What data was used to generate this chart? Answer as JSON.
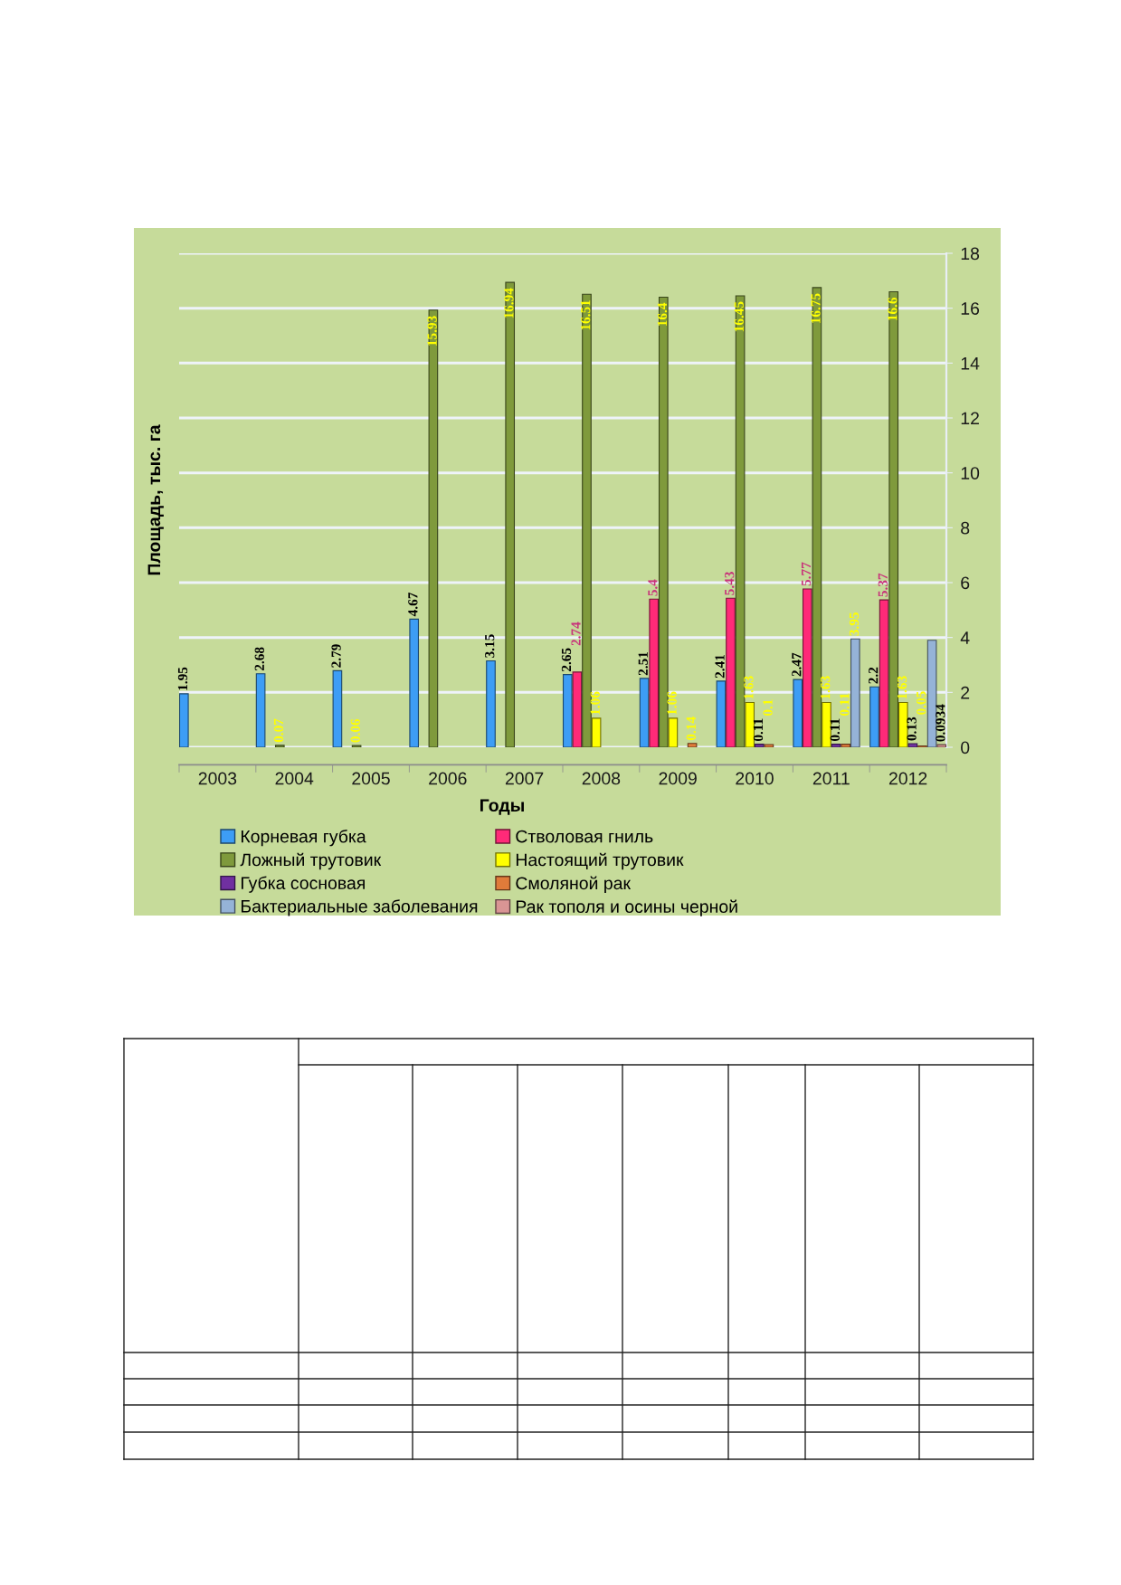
{
  "chart_data": {
    "type": "bar",
    "xlabel": "Годы",
    "ylabel": "Площадь, тыс. га",
    "categories": [
      "2003",
      "2004",
      "2005",
      "2006",
      "2007",
      "2008",
      "2009",
      "2010",
      "2011",
      "2012"
    ],
    "series": [
      {
        "name": "Корневая губка",
        "color": "#3d9df5",
        "values": [
          1.95,
          2.68,
          2.79,
          4.67,
          3.15,
          2.65,
          2.51,
          2.41,
          2.47,
          2.2
        ],
        "value_labels": [
          "1.95",
          "2.68",
          "2.79",
          "4.67",
          "3.15",
          "2.65",
          "2.51",
          "2.41",
          "2.47",
          "2.2"
        ]
      },
      {
        "name": "Стволовая гниль",
        "color": "#ff2a78",
        "values": [
          null,
          null,
          null,
          null,
          null,
          2.74,
          5.4,
          5.43,
          5.77,
          5.37
        ],
        "value_labels": [
          null,
          null,
          null,
          null,
          null,
          "2.74",
          "5.4",
          "5.43",
          "5.77",
          "5.37"
        ]
      },
      {
        "name": "Ложный трутовик",
        "color": "#7f9a3c",
        "values": [
          null,
          0.07,
          0.06,
          15.93,
          16.94,
          16.51,
          16.4,
          16.45,
          16.75,
          16.6
        ],
        "value_labels": [
          null,
          "0.07",
          "0.06",
          "15.93",
          "16.94",
          "16.51",
          "16.4",
          "16.45",
          "16.75",
          "16.6"
        ]
      },
      {
        "name": "Настоящий трутовик",
        "color": "#ffff00",
        "values": [
          null,
          null,
          null,
          null,
          null,
          1.06,
          1.06,
          1.63,
          1.63,
          1.63
        ],
        "value_labels": [
          null,
          null,
          null,
          null,
          null,
          "1.06",
          "1.06",
          "1.63",
          "1.63",
          "1.63"
        ]
      },
      {
        "name": "Губка сосновая",
        "color": "#7030a0",
        "values": [
          null,
          null,
          null,
          null,
          null,
          null,
          null,
          0.11,
          0.11,
          0.13
        ],
        "value_labels": [
          null,
          null,
          null,
          null,
          null,
          null,
          null,
          "0.11",
          "0.11",
          "0.13"
        ]
      },
      {
        "name": "Смоляной рак",
        "color": "#e07b3a",
        "values": [
          null,
          null,
          null,
          null,
          null,
          null,
          0.14,
          0.1,
          0.11,
          0.05
        ],
        "value_labels": [
          null,
          null,
          null,
          null,
          null,
          null,
          "0.14",
          "0.1",
          "0.11",
          "0.05"
        ]
      },
      {
        "name": "Бактериальные заболевания",
        "color": "#95b3d7",
        "values": [
          null,
          null,
          null,
          null,
          null,
          null,
          null,
          null,
          3.95,
          3.9
        ],
        "value_labels": [
          null,
          null,
          null,
          null,
          null,
          null,
          null,
          null,
          "3.95",
          null
        ]
      },
      {
        "name": "Рак тополя и осины черной",
        "color": "#d99594",
        "values": [
          null,
          null,
          null,
          null,
          null,
          null,
          null,
          null,
          null,
          0.0934
        ],
        "value_labels": [
          null,
          null,
          null,
          null,
          null,
          null,
          null,
          null,
          null,
          "0.0934"
        ]
      }
    ],
    "ylim": [
      0,
      18
    ],
    "yticks": [
      0,
      2,
      4,
      6,
      8,
      10,
      12,
      14,
      16,
      18
    ],
    "grid": "y",
    "legend": "bottom"
  }
}
